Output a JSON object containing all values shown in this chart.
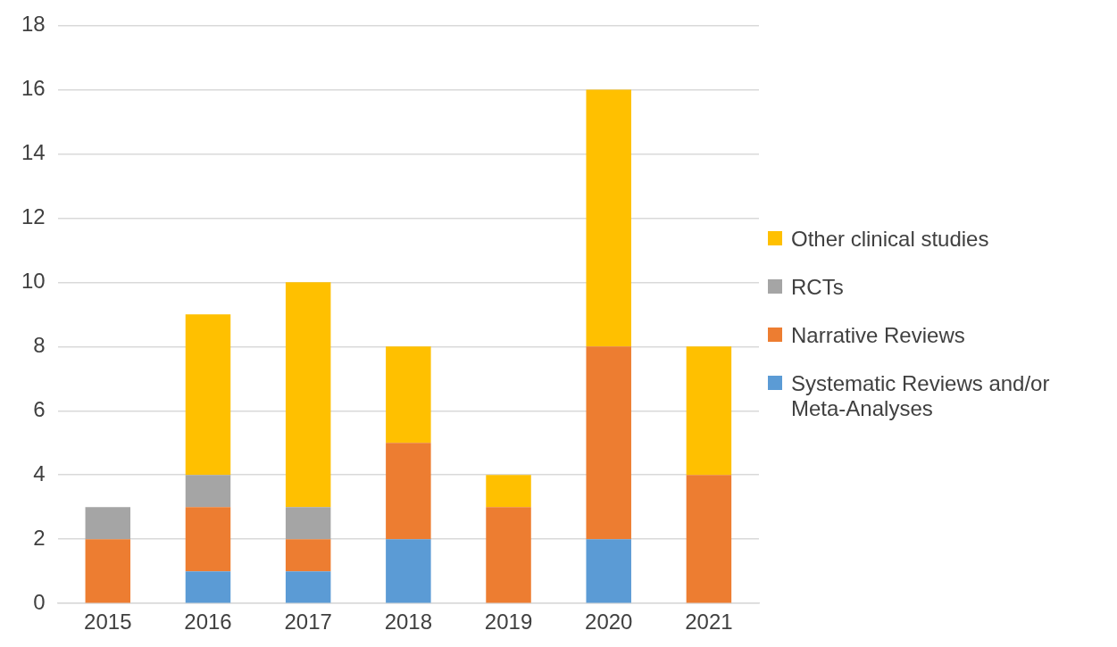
{
  "chart_data": {
    "type": "bar",
    "stacked": true,
    "categories": [
      "2015",
      "2016",
      "2017",
      "2018",
      "2019",
      "2020",
      "2021"
    ],
    "series": [
      {
        "name": "Systematic Reviews and/or Meta-Analyses",
        "color": "#5b9bd5",
        "values": [
          0,
          1,
          1,
          2,
          0,
          2,
          0
        ]
      },
      {
        "name": "Narrative Reviews",
        "color": "#ed7d31",
        "values": [
          2,
          2,
          1,
          3,
          3,
          6,
          4
        ]
      },
      {
        "name": "RCTs",
        "color": "#a5a5a5",
        "values": [
          1,
          1,
          1,
          0,
          0,
          0,
          0
        ]
      },
      {
        "name": "Other clinical studies",
        "color": "#ffc000",
        "values": [
          0,
          5,
          7,
          3,
          1,
          8,
          4
        ]
      }
    ],
    "ylim": [
      0,
      18
    ],
    "yticks": [
      0,
      2,
      4,
      6,
      8,
      10,
      12,
      14,
      16,
      18
    ],
    "grid": "y",
    "legend": "right"
  }
}
